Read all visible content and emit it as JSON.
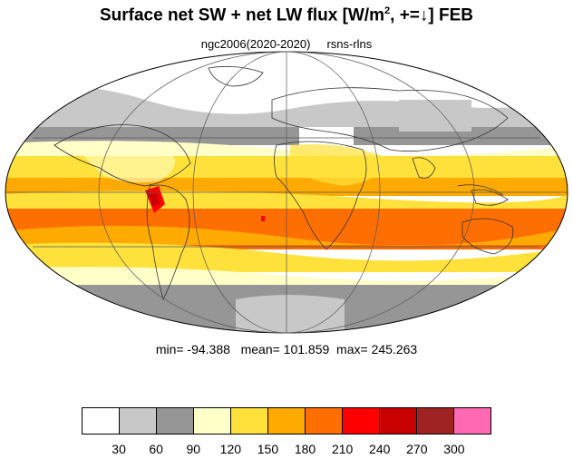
{
  "title": {
    "main": "Surface net SW + net LW flux [W/m",
    "sup": "2",
    "tail": ", +=↓]  FEB"
  },
  "subtitle": {
    "case": "ngc2006(2020-2020)",
    "variable": "rsns-rlns"
  },
  "stats": {
    "text": "min= -94.388   mean= 101.859  max= 245.263"
  },
  "legend": {
    "colors": [
      "#ffffff",
      "#c8c8c8",
      "#969696",
      "#ffffc8",
      "#ffe13c",
      "#ffaa00",
      "#ff6e00",
      "#ff0000",
      "#c80000",
      "#a02323",
      "#ff69b4"
    ],
    "labels": [
      "30",
      "60",
      "90",
      "120",
      "150",
      "180",
      "210",
      "240",
      "270",
      "300"
    ]
  }
}
